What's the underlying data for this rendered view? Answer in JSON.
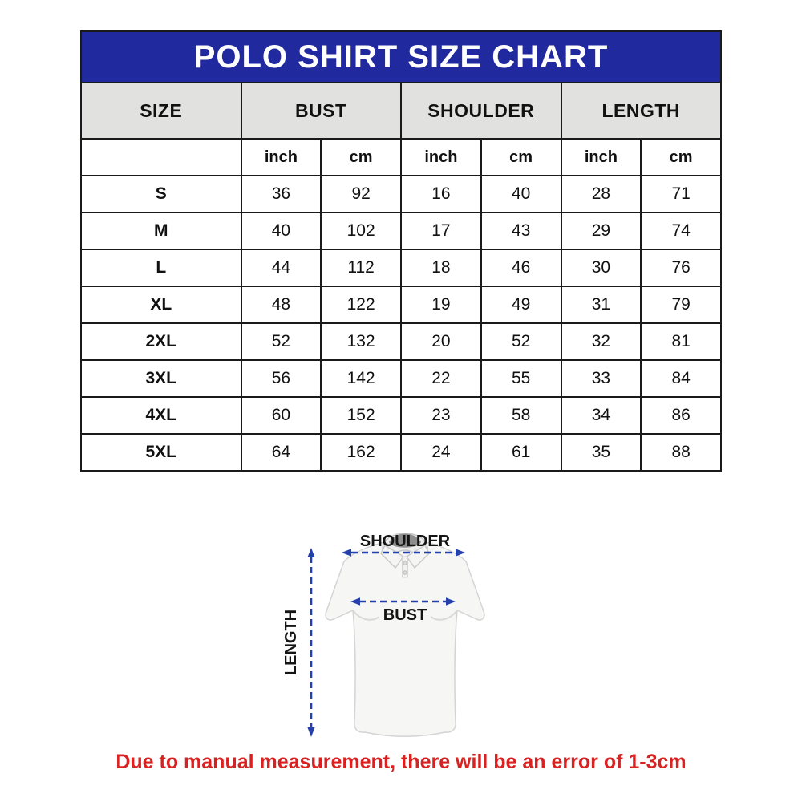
{
  "chart_data": {
    "type": "table",
    "title": "POLO SHIRT SIZE CHART",
    "columns": [
      {
        "label": "SIZE"
      },
      {
        "label": "BUST",
        "units": [
          "inch",
          "cm"
        ]
      },
      {
        "label": "SHOULDER",
        "units": [
          "inch",
          "cm"
        ]
      },
      {
        "label": "LENGTH",
        "units": [
          "inch",
          "cm"
        ]
      }
    ],
    "unit_row": [
      "inch",
      "cm",
      "inch",
      "cm",
      "inch",
      "cm"
    ],
    "rows": [
      {
        "size": "S",
        "values": [
          36,
          92,
          16,
          40,
          28,
          71
        ]
      },
      {
        "size": "M",
        "values": [
          40,
          102,
          17,
          43,
          29,
          74
        ]
      },
      {
        "size": "L",
        "values": [
          44,
          112,
          18,
          46,
          30,
          76
        ]
      },
      {
        "size": "XL",
        "values": [
          48,
          122,
          19,
          49,
          31,
          79
        ]
      },
      {
        "size": "2XL",
        "values": [
          52,
          132,
          20,
          52,
          32,
          81
        ]
      },
      {
        "size": "3XL",
        "values": [
          56,
          142,
          22,
          55,
          33,
          84
        ]
      },
      {
        "size": "4XL",
        "values": [
          60,
          152,
          23,
          58,
          34,
          86
        ]
      },
      {
        "size": "5XL",
        "values": [
          64,
          162,
          24,
          61,
          35,
          88
        ]
      }
    ]
  },
  "diagram": {
    "shoulder_label": "SHOULDER",
    "bust_label": "BUST",
    "length_label": "LENGTH"
  },
  "footnote": "Due to manual measurement, there will be an error of 1-3cm",
  "colors": {
    "title_bg": "#202a9e",
    "title_text": "#ffffff",
    "header_bg": "#e1e1e0",
    "table_border": "#1a1a1a",
    "arrow_blue": "#2540aa",
    "footnote_red": "#da2121"
  }
}
